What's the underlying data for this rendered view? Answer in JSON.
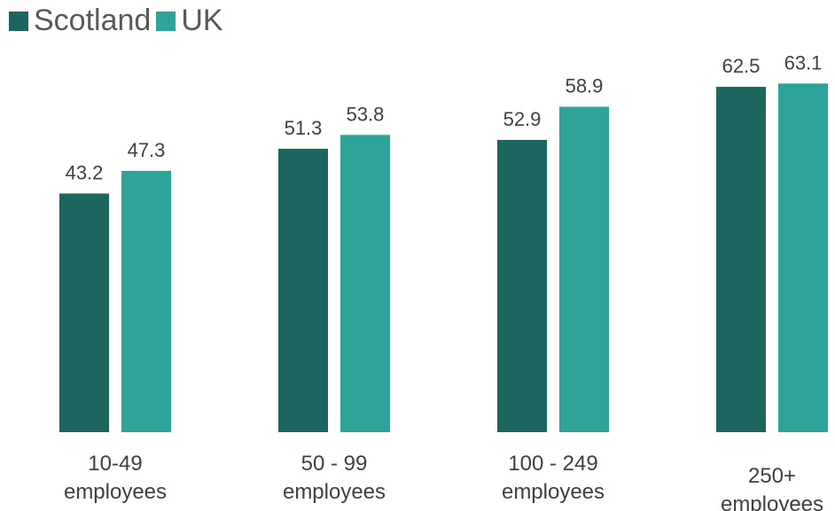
{
  "chart_data": {
    "type": "bar",
    "categories": [
      [
        "10-49",
        "employees"
      ],
      [
        "50 - 99",
        "employees"
      ],
      [
        "100 - 249",
        "employees"
      ],
      [
        "250+",
        "employees"
      ]
    ],
    "series": [
      {
        "name": "Scotland",
        "color": "#1d6660",
        "values": [
          43.2,
          51.3,
          52.9,
          62.5
        ]
      },
      {
        "name": "UK",
        "color": "#2ea39a",
        "values": [
          47.3,
          53.8,
          58.9,
          63.1
        ]
      }
    ],
    "ylim": [
      0,
      67
    ],
    "grid": false,
    "legend_position": "top-left",
    "title": "",
    "xlabel": "",
    "ylabel": ""
  }
}
